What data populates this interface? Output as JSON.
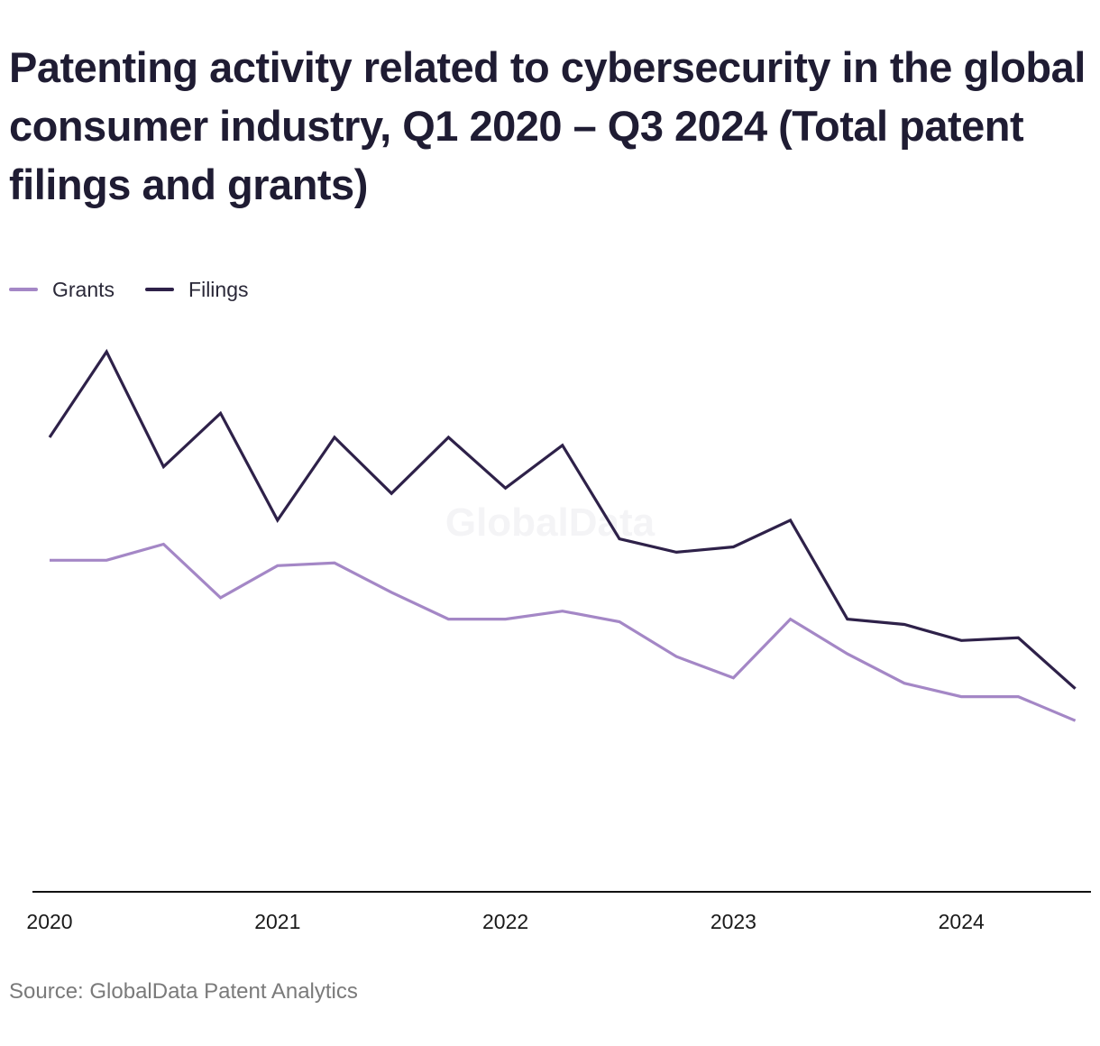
{
  "title": "Patenting activity related to cybersecurity in the global consumer industry, Q1 2020 – Q3 2024 (Total patent filings and grants)",
  "source": "Source: GlobalData Patent Analytics",
  "watermark": "GlobalData",
  "colors": {
    "grants": "#a487c6",
    "filings": "#2e2149",
    "axis": "#111111",
    "text": "#1f1c33"
  },
  "chart_data": {
    "type": "line",
    "title": "Patenting activity related to cybersecurity in the global consumer industry, Q1 2020 – Q3 2024 (Total patent filings and grants)",
    "x": [
      "Q1 2020",
      "Q2 2020",
      "Q3 2020",
      "Q4 2020",
      "Q1 2021",
      "Q2 2021",
      "Q3 2021",
      "Q4 2021",
      "Q1 2022",
      "Q2 2022",
      "Q3 2022",
      "Q4 2022",
      "Q1 2023",
      "Q2 2023",
      "Q3 2023",
      "Q4 2023",
      "Q1 2024",
      "Q2 2024",
      "Q3 2024"
    ],
    "x_tick_labels": [
      "2020",
      "2021",
      "2022",
      "2023",
      "2024"
    ],
    "xlabel": "",
    "ylabel": "",
    "y_axis_shown": false,
    "grid": false,
    "legend_placement": "top-left",
    "ylim": [
      0,
      100
    ],
    "series": [
      {
        "name": "Grants",
        "values": [
          62,
          62,
          65,
          55,
          61,
          61.5,
          56,
          51,
          51,
          52.5,
          50.5,
          44,
          40,
          51,
          44.5,
          39,
          36.5,
          36.5,
          32
        ]
      },
      {
        "name": "Filings",
        "values": [
          85,
          101,
          79.5,
          89.5,
          69.5,
          85,
          74.5,
          85,
          75.5,
          83.5,
          66,
          63.5,
          64.5,
          69.5,
          51,
          50,
          47,
          47.5,
          38
        ]
      }
    ]
  }
}
